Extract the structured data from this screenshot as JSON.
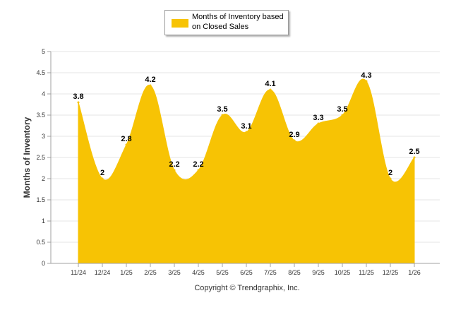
{
  "colors": {
    "fill": "#F7C304",
    "grid": "#E6E6E6",
    "axis": "#A0A0A0",
    "text": "#333333",
    "label": "#000000"
  },
  "legend": {
    "label": "Months of Inventory based on Closed Sales"
  },
  "footer": {
    "copyright": "Copyright © Trendgraphix, Inc."
  },
  "chart_data": {
    "type": "area",
    "title": "",
    "xlabel": "",
    "ylabel": "Months of Inventory",
    "ylim": [
      0,
      5
    ],
    "yticks": [
      "0",
      "0.5",
      "1",
      "1.5",
      "2",
      "2.5",
      "3",
      "3.5",
      "4",
      "4.5",
      "5"
    ],
    "grid": true,
    "legend_position": "top-center",
    "categories": [
      "11/24",
      "12/24",
      "1/25",
      "2/25",
      "3/25",
      "4/25",
      "5/25",
      "6/25",
      "7/25",
      "8/25",
      "9/25",
      "10/25",
      "11/25",
      "12/25",
      "1/26"
    ],
    "series": [
      {
        "name": "Months of Inventory based on Closed Sales",
        "values": [
          3.8,
          2,
          2.8,
          4.2,
          2.2,
          2.2,
          3.5,
          3.1,
          4.1,
          2.9,
          3.3,
          3.5,
          4.3,
          2,
          2.5
        ],
        "labels": [
          "3.8",
          "2",
          "2.8",
          "4.2",
          "2.2",
          "2.2",
          "3.5",
          "3.1",
          "4.1",
          "2.9",
          "3.3",
          "3.5",
          "4.3",
          "2",
          "2.5"
        ]
      }
    ]
  }
}
